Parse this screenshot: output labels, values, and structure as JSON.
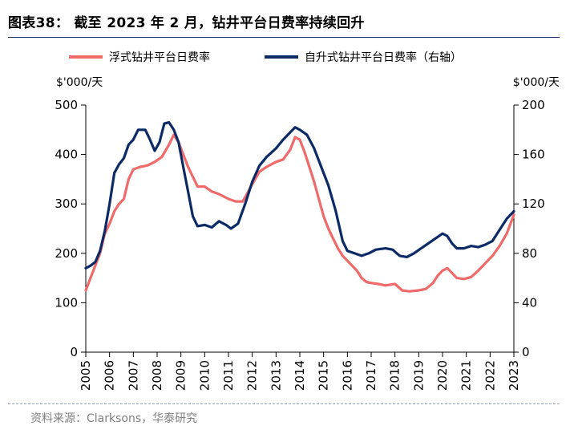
{
  "title": "图表38：  截至 2023 年 2 月，钻井平台日费率持续回升",
  "source": "资料来源：Clarksons，华泰研究",
  "chart_data": {
    "type": "line",
    "title": "截至 2023 年 2 月，钻井平台日费率持续回升",
    "left_axis": {
      "unit_label": "$'000/天",
      "ylim": [
        0,
        500
      ],
      "ticks": [
        0,
        100,
        200,
        300,
        400,
        500
      ]
    },
    "right_axis": {
      "unit_label": "$'000/天",
      "ylim": [
        0,
        200
      ],
      "ticks": [
        0,
        40,
        80,
        120,
        160,
        200
      ]
    },
    "x_axis": {
      "xlim": [
        2005,
        2023
      ],
      "ticks": [
        "2005",
        "2006",
        "2007",
        "2008",
        "2009",
        "2010",
        "2011",
        "2012",
        "2013",
        "2014",
        "2015",
        "2016",
        "2017",
        "2018",
        "2019",
        "2020",
        "2021",
        "2022",
        "2023"
      ]
    },
    "grid": false,
    "legend_position": "top",
    "series": [
      {
        "name": "浮式钻井平台日费率",
        "axis": "left",
        "color": "#f06a6a",
        "points": [
          [
            2005.0,
            125
          ],
          [
            2005.2,
            150
          ],
          [
            2005.4,
            175
          ],
          [
            2005.6,
            200
          ],
          [
            2005.8,
            240
          ],
          [
            2006.0,
            260
          ],
          [
            2006.2,
            285
          ],
          [
            2006.4,
            300
          ],
          [
            2006.6,
            310
          ],
          [
            2006.8,
            350
          ],
          [
            2007.0,
            370
          ],
          [
            2007.3,
            375
          ],
          [
            2007.6,
            378
          ],
          [
            2007.9,
            385
          ],
          [
            2008.2,
            395
          ],
          [
            2008.5,
            420
          ],
          [
            2008.7,
            440
          ],
          [
            2008.9,
            425
          ],
          [
            2009.1,
            400
          ],
          [
            2009.3,
            375
          ],
          [
            2009.5,
            355
          ],
          [
            2009.7,
            335
          ],
          [
            2010.0,
            335
          ],
          [
            2010.3,
            325
          ],
          [
            2010.6,
            320
          ],
          [
            2011.0,
            310
          ],
          [
            2011.3,
            305
          ],
          [
            2011.6,
            305
          ],
          [
            2012.0,
            340
          ],
          [
            2012.3,
            365
          ],
          [
            2012.6,
            375
          ],
          [
            2013.0,
            385
          ],
          [
            2013.3,
            390
          ],
          [
            2013.6,
            410
          ],
          [
            2013.8,
            435
          ],
          [
            2014.0,
            430
          ],
          [
            2014.2,
            405
          ],
          [
            2014.4,
            375
          ],
          [
            2014.6,
            345
          ],
          [
            2014.8,
            310
          ],
          [
            2015.0,
            275
          ],
          [
            2015.2,
            250
          ],
          [
            2015.4,
            230
          ],
          [
            2015.6,
            210
          ],
          [
            2015.8,
            195
          ],
          [
            2016.0,
            185
          ],
          [
            2016.2,
            175
          ],
          [
            2016.4,
            165
          ],
          [
            2016.6,
            150
          ],
          [
            2016.8,
            142
          ],
          [
            2017.0,
            140
          ],
          [
            2017.3,
            138
          ],
          [
            2017.6,
            135
          ],
          [
            2018.0,
            138
          ],
          [
            2018.3,
            125
          ],
          [
            2018.6,
            123
          ],
          [
            2019.0,
            125
          ],
          [
            2019.3,
            128
          ],
          [
            2019.6,
            140
          ],
          [
            2019.8,
            155
          ],
          [
            2020.0,
            165
          ],
          [
            2020.2,
            170
          ],
          [
            2020.4,
            160
          ],
          [
            2020.6,
            150
          ],
          [
            2020.9,
            148
          ],
          [
            2021.2,
            152
          ],
          [
            2021.5,
            165
          ],
          [
            2021.8,
            180
          ],
          [
            2022.1,
            195
          ],
          [
            2022.4,
            215
          ],
          [
            2022.7,
            240
          ],
          [
            2023.0,
            278
          ]
        ]
      },
      {
        "name": "自升式钻井平台日费率（右轴）",
        "axis": "right",
        "color": "#0b2a66",
        "points": [
          [
            2005.0,
            68
          ],
          [
            2005.2,
            70
          ],
          [
            2005.4,
            73
          ],
          [
            2005.6,
            82
          ],
          [
            2005.8,
            98
          ],
          [
            2006.0,
            120
          ],
          [
            2006.2,
            145
          ],
          [
            2006.4,
            152
          ],
          [
            2006.6,
            157
          ],
          [
            2006.8,
            168
          ],
          [
            2007.0,
            172
          ],
          [
            2007.2,
            180
          ],
          [
            2007.5,
            180
          ],
          [
            2007.7,
            172
          ],
          [
            2007.9,
            163
          ],
          [
            2008.1,
            170
          ],
          [
            2008.3,
            185
          ],
          [
            2008.5,
            186
          ],
          [
            2008.7,
            180
          ],
          [
            2008.9,
            170
          ],
          [
            2009.1,
            150
          ],
          [
            2009.3,
            130
          ],
          [
            2009.5,
            110
          ],
          [
            2009.7,
            102
          ],
          [
            2010.0,
            103
          ],
          [
            2010.3,
            101
          ],
          [
            2010.6,
            106
          ],
          [
            2010.9,
            103
          ],
          [
            2011.1,
            100
          ],
          [
            2011.4,
            104
          ],
          [
            2011.7,
            120
          ],
          [
            2012.0,
            138
          ],
          [
            2012.3,
            151
          ],
          [
            2012.6,
            158
          ],
          [
            2013.0,
            165
          ],
          [
            2013.3,
            172
          ],
          [
            2013.6,
            178
          ],
          [
            2013.8,
            182
          ],
          [
            2014.0,
            180
          ],
          [
            2014.3,
            176
          ],
          [
            2014.6,
            165
          ],
          [
            2014.9,
            150
          ],
          [
            2015.2,
            135
          ],
          [
            2015.5,
            115
          ],
          [
            2015.8,
            90
          ],
          [
            2016.0,
            82
          ],
          [
            2016.3,
            80
          ],
          [
            2016.6,
            78
          ],
          [
            2016.9,
            80
          ],
          [
            2017.2,
            83
          ],
          [
            2017.6,
            84
          ],
          [
            2017.9,
            83
          ],
          [
            2018.2,
            78
          ],
          [
            2018.5,
            77
          ],
          [
            2018.8,
            80
          ],
          [
            2019.1,
            84
          ],
          [
            2019.4,
            88
          ],
          [
            2019.7,
            92
          ],
          [
            2020.0,
            96
          ],
          [
            2020.2,
            94
          ],
          [
            2020.4,
            88
          ],
          [
            2020.6,
            84
          ],
          [
            2020.9,
            84
          ],
          [
            2021.2,
            86
          ],
          [
            2021.5,
            85
          ],
          [
            2021.8,
            87
          ],
          [
            2022.1,
            90
          ],
          [
            2022.4,
            99
          ],
          [
            2022.7,
            108
          ],
          [
            2023.0,
            114
          ]
        ]
      }
    ]
  }
}
